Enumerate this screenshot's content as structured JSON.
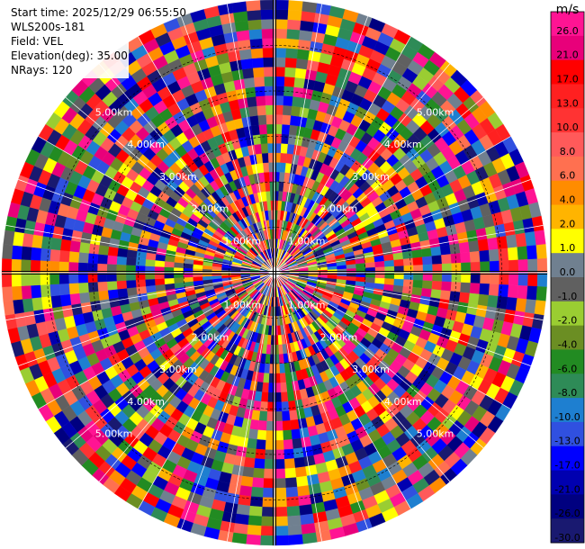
{
  "info": {
    "start_time": "Start time: 2025/12/29 06:55:50",
    "station": "WLS200s-181",
    "field": "Field: VEL",
    "elevation": "Elevation(deg): 35.00",
    "nrays": "NRays: 120"
  },
  "chart_data": {
    "type": "ppi",
    "field": "VEL",
    "elevation_deg": 35.0,
    "n_rays": 120,
    "max_range_km": 6.0,
    "range_rings_km": [
      1,
      2,
      3,
      4,
      5
    ],
    "ring_labels": [
      "1.00km",
      "2.00km",
      "3.00km",
      "4.00km",
      "5.00km"
    ],
    "note_values": "Velocity field is noise-like (values span full colorscale across all gates)",
    "colorbar": {
      "unit": "m/s",
      "ticks": [
        "26.0",
        "21.0",
        "17.0",
        "13.0",
        "10.0",
        "8.0",
        "6.0",
        "4.0",
        "2.0",
        "1.0",
        "0.0",
        "-1.0",
        "-2.0",
        "-4.0",
        "-6.0",
        "-8.0",
        "-10.0",
        "-13.0",
        "-17.0",
        "-21.0",
        "-26.0",
        "-30.0"
      ],
      "colors": [
        "#ff1493",
        "#e8007a",
        "#ff0000",
        "#ff2020",
        "#ff3333",
        "#ff5a5a",
        "#ff7050",
        "#ff8c00",
        "#ffb400",
        "#ffff00",
        "#708090",
        "#606060",
        "#9acd32",
        "#6b8e23",
        "#228b22",
        "#2e8b57",
        "#1e7fd0",
        "#3050e0",
        "#0000ff",
        "#0000b0",
        "#000080",
        "#191970"
      ]
    }
  }
}
